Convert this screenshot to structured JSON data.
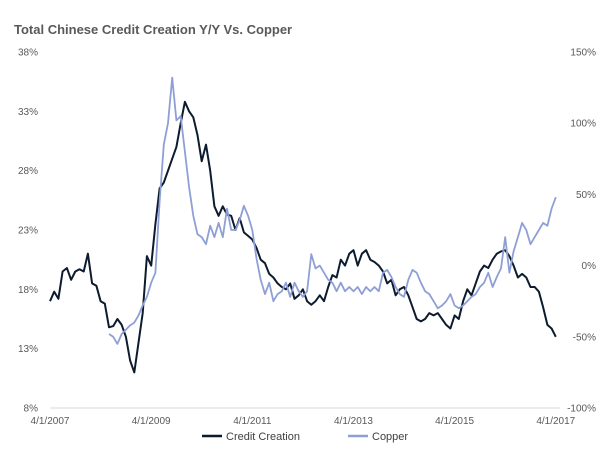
{
  "chart_data": {
    "type": "line",
    "title": "Total Chinese Credit Creation Y/Y Vs. Copper",
    "xlabel": "",
    "ylabel": "",
    "x_ticks": [
      "4/1/2007",
      "4/1/2009",
      "4/1/2011",
      "4/1/2013",
      "4/1/2015",
      "4/1/2017"
    ],
    "xlim": [
      "2007-04-01",
      "2017-05-01"
    ],
    "y_left": {
      "ticks": [
        "8%",
        "13%",
        "18%",
        "23%",
        "28%",
        "33%",
        "38%"
      ],
      "range": [
        8,
        38
      ]
    },
    "y_right": {
      "ticks": [
        "-100%",
        "-50%",
        "0%",
        "50%",
        "100%",
        "150%"
      ],
      "range": [
        -100,
        150
      ]
    },
    "legend_position": "bottom",
    "grid": false,
    "series": [
      {
        "name": "Credit Creation",
        "axis": "left",
        "color": "#0d1b2e",
        "points": [
          [
            "2007-04",
            17.0
          ],
          [
            "2007-05",
            17.8
          ],
          [
            "2007-06",
            17.2
          ],
          [
            "2007-07",
            19.5
          ],
          [
            "2007-08",
            19.8
          ],
          [
            "2007-09",
            18.8
          ],
          [
            "2007-10",
            19.5
          ],
          [
            "2007-11",
            19.7
          ],
          [
            "2007-12",
            19.5
          ],
          [
            "2008-01",
            21.0
          ],
          [
            "2008-02",
            18.5
          ],
          [
            "2008-03",
            18.3
          ],
          [
            "2008-04",
            17.0
          ],
          [
            "2008-05",
            16.8
          ],
          [
            "2008-06",
            14.8
          ],
          [
            "2008-07",
            14.9
          ],
          [
            "2008-08",
            15.5
          ],
          [
            "2008-09",
            15.0
          ],
          [
            "2008-10",
            14.0
          ],
          [
            "2008-11",
            12.0
          ],
          [
            "2008-12",
            11.0
          ],
          [
            "2009-01",
            13.5
          ],
          [
            "2009-02",
            16.0
          ],
          [
            "2009-03",
            20.8
          ],
          [
            "2009-04",
            20.0
          ],
          [
            "2009-05",
            23.5
          ],
          [
            "2009-06",
            26.5
          ],
          [
            "2009-07",
            27.0
          ],
          [
            "2009-08",
            28.0
          ],
          [
            "2009-09",
            29.0
          ],
          [
            "2009-10",
            30.0
          ],
          [
            "2009-11",
            32.0
          ],
          [
            "2009-12",
            33.8
          ],
          [
            "2010-01",
            33.0
          ],
          [
            "2010-02",
            32.5
          ],
          [
            "2010-03",
            31.0
          ],
          [
            "2010-04",
            28.8
          ],
          [
            "2010-05",
            30.2
          ],
          [
            "2010-06",
            28.0
          ],
          [
            "2010-07",
            25.0
          ],
          [
            "2010-08",
            24.2
          ],
          [
            "2010-09",
            25.0
          ],
          [
            "2010-10",
            24.3
          ],
          [
            "2010-11",
            24.2
          ],
          [
            "2010-12",
            23.0
          ],
          [
            "2011-01",
            24.0
          ],
          [
            "2011-02",
            22.8
          ],
          [
            "2011-03",
            22.5
          ],
          [
            "2011-04",
            22.2
          ],
          [
            "2011-05",
            21.5
          ],
          [
            "2011-06",
            20.5
          ],
          [
            "2011-07",
            20.2
          ],
          [
            "2011-08",
            19.3
          ],
          [
            "2011-09",
            19.0
          ],
          [
            "2011-10",
            18.5
          ],
          [
            "2011-11",
            18.2
          ],
          [
            "2011-12",
            18.0
          ],
          [
            "2012-01",
            18.5
          ],
          [
            "2012-02",
            17.2
          ],
          [
            "2012-03",
            17.5
          ],
          [
            "2012-04",
            18.0
          ],
          [
            "2012-05",
            17.0
          ],
          [
            "2012-06",
            16.7
          ],
          [
            "2012-07",
            17.0
          ],
          [
            "2012-08",
            17.5
          ],
          [
            "2012-09",
            17.0
          ],
          [
            "2012-10",
            18.2
          ],
          [
            "2012-11",
            19.2
          ],
          [
            "2012-12",
            19.0
          ],
          [
            "2013-01",
            20.5
          ],
          [
            "2013-02",
            20.0
          ],
          [
            "2013-03",
            21.0
          ],
          [
            "2013-04",
            21.3
          ],
          [
            "2013-05",
            20.0
          ],
          [
            "2013-06",
            21.0
          ],
          [
            "2013-07",
            21.3
          ],
          [
            "2013-08",
            20.5
          ],
          [
            "2013-09",
            20.3
          ],
          [
            "2013-10",
            20.0
          ],
          [
            "2013-11",
            19.5
          ],
          [
            "2013-12",
            18.5
          ],
          [
            "2014-01",
            18.8
          ],
          [
            "2014-02",
            17.5
          ],
          [
            "2014-03",
            18.0
          ],
          [
            "2014-04",
            18.2
          ],
          [
            "2014-05",
            17.5
          ],
          [
            "2014-06",
            16.5
          ],
          [
            "2014-07",
            15.5
          ],
          [
            "2014-08",
            15.3
          ],
          [
            "2014-09",
            15.5
          ],
          [
            "2014-10",
            16.0
          ],
          [
            "2014-11",
            15.8
          ],
          [
            "2014-12",
            16.0
          ],
          [
            "2015-01",
            15.5
          ],
          [
            "2015-02",
            15.0
          ],
          [
            "2015-03",
            14.7
          ],
          [
            "2015-04",
            15.8
          ],
          [
            "2015-05",
            15.5
          ],
          [
            "2015-06",
            17.0
          ],
          [
            "2015-07",
            18.0
          ],
          [
            "2015-08",
            17.5
          ],
          [
            "2015-09",
            18.5
          ],
          [
            "2015-10",
            19.5
          ],
          [
            "2015-11",
            20.0
          ],
          [
            "2015-12",
            19.8
          ],
          [
            "2016-01",
            20.5
          ],
          [
            "2016-02",
            21.0
          ],
          [
            "2016-03",
            21.2
          ],
          [
            "2016-04",
            21.3
          ],
          [
            "2016-05",
            20.8
          ],
          [
            "2016-06",
            20.0
          ],
          [
            "2016-07",
            19.0
          ],
          [
            "2016-08",
            19.3
          ],
          [
            "2016-09",
            19.0
          ],
          [
            "2016-10",
            18.2
          ],
          [
            "2016-11",
            18.2
          ],
          [
            "2016-12",
            17.8
          ],
          [
            "2017-01",
            16.5
          ],
          [
            "2017-02",
            15.0
          ],
          [
            "2017-03",
            14.7
          ],
          [
            "2017-04",
            14.0
          ]
        ]
      },
      {
        "name": "Copper",
        "axis": "right",
        "color": "#8e9fd6",
        "points": [
          [
            "2008-06",
            -48
          ],
          [
            "2008-07",
            -50
          ],
          [
            "2008-08",
            -55
          ],
          [
            "2008-09",
            -48
          ],
          [
            "2008-10",
            -45
          ],
          [
            "2008-11",
            -42
          ],
          [
            "2008-12",
            -40
          ],
          [
            "2009-01",
            -35
          ],
          [
            "2009-02",
            -28
          ],
          [
            "2009-03",
            -22
          ],
          [
            "2009-04",
            -12
          ],
          [
            "2009-05",
            -5
          ],
          [
            "2009-06",
            45
          ],
          [
            "2009-07",
            85
          ],
          [
            "2009-08",
            100
          ],
          [
            "2009-09",
            132
          ],
          [
            "2009-10",
            102
          ],
          [
            "2009-11",
            105
          ],
          [
            "2009-12",
            80
          ],
          [
            "2010-01",
            55
          ],
          [
            "2010-02",
            35
          ],
          [
            "2010-03",
            22
          ],
          [
            "2010-04",
            20
          ],
          [
            "2010-05",
            15
          ],
          [
            "2010-06",
            28
          ],
          [
            "2010-07",
            20
          ],
          [
            "2010-08",
            30
          ],
          [
            "2010-09",
            20
          ],
          [
            "2010-10",
            40
          ],
          [
            "2010-11",
            25
          ],
          [
            "2010-12",
            25
          ],
          [
            "2011-01",
            32
          ],
          [
            "2011-02",
            42
          ],
          [
            "2011-03",
            35
          ],
          [
            "2011-04",
            25
          ],
          [
            "2011-05",
            5
          ],
          [
            "2011-06",
            -10
          ],
          [
            "2011-07",
            -20
          ],
          [
            "2011-08",
            -12
          ],
          [
            "2011-09",
            -25
          ],
          [
            "2011-10",
            -20
          ],
          [
            "2011-11",
            -18
          ],
          [
            "2011-12",
            -12
          ],
          [
            "2012-01",
            -22
          ],
          [
            "2012-02",
            -12
          ],
          [
            "2012-03",
            -18
          ],
          [
            "2012-04",
            -22
          ],
          [
            "2012-05",
            -18
          ],
          [
            "2012-06",
            8
          ],
          [
            "2012-07",
            -2
          ],
          [
            "2012-08",
            0
          ],
          [
            "2012-09",
            -5
          ],
          [
            "2012-10",
            -10
          ],
          [
            "2012-11",
            -12
          ],
          [
            "2012-12",
            -18
          ],
          [
            "2013-01",
            -12
          ],
          [
            "2013-02",
            -18
          ],
          [
            "2013-03",
            -15
          ],
          [
            "2013-04",
            -18
          ],
          [
            "2013-05",
            -15
          ],
          [
            "2013-06",
            -20
          ],
          [
            "2013-07",
            -15
          ],
          [
            "2013-08",
            -18
          ],
          [
            "2013-09",
            -15
          ],
          [
            "2013-10",
            -18
          ],
          [
            "2013-11",
            -5
          ],
          [
            "2013-12",
            -3
          ],
          [
            "2014-01",
            -8
          ],
          [
            "2014-02",
            -15
          ],
          [
            "2014-03",
            -20
          ],
          [
            "2014-04",
            -22
          ],
          [
            "2014-05",
            -10
          ],
          [
            "2014-06",
            -3
          ],
          [
            "2014-07",
            -5
          ],
          [
            "2014-08",
            -12
          ],
          [
            "2014-09",
            -18
          ],
          [
            "2014-10",
            -20
          ],
          [
            "2014-11",
            -25
          ],
          [
            "2014-12",
            -30
          ],
          [
            "2015-01",
            -28
          ],
          [
            "2015-02",
            -25
          ],
          [
            "2015-03",
            -20
          ],
          [
            "2015-04",
            -28
          ],
          [
            "2015-05",
            -30
          ],
          [
            "2015-06",
            -28
          ],
          [
            "2015-07",
            -25
          ],
          [
            "2015-08",
            -22
          ],
          [
            "2015-09",
            -20
          ],
          [
            "2015-10",
            -15
          ],
          [
            "2015-11",
            -12
          ],
          [
            "2015-12",
            -5
          ],
          [
            "2016-01",
            -15
          ],
          [
            "2016-02",
            -8
          ],
          [
            "2016-03",
            -2
          ],
          [
            "2016-04",
            20
          ],
          [
            "2016-05",
            -5
          ],
          [
            "2016-06",
            10
          ],
          [
            "2016-07",
            20
          ],
          [
            "2016-08",
            30
          ],
          [
            "2016-09",
            25
          ],
          [
            "2016-10",
            15
          ],
          [
            "2016-11",
            20
          ],
          [
            "2016-12",
            25
          ],
          [
            "2017-01",
            30
          ],
          [
            "2017-02",
            28
          ],
          [
            "2017-03",
            40
          ],
          [
            "2017-04",
            48
          ]
        ]
      }
    ]
  }
}
